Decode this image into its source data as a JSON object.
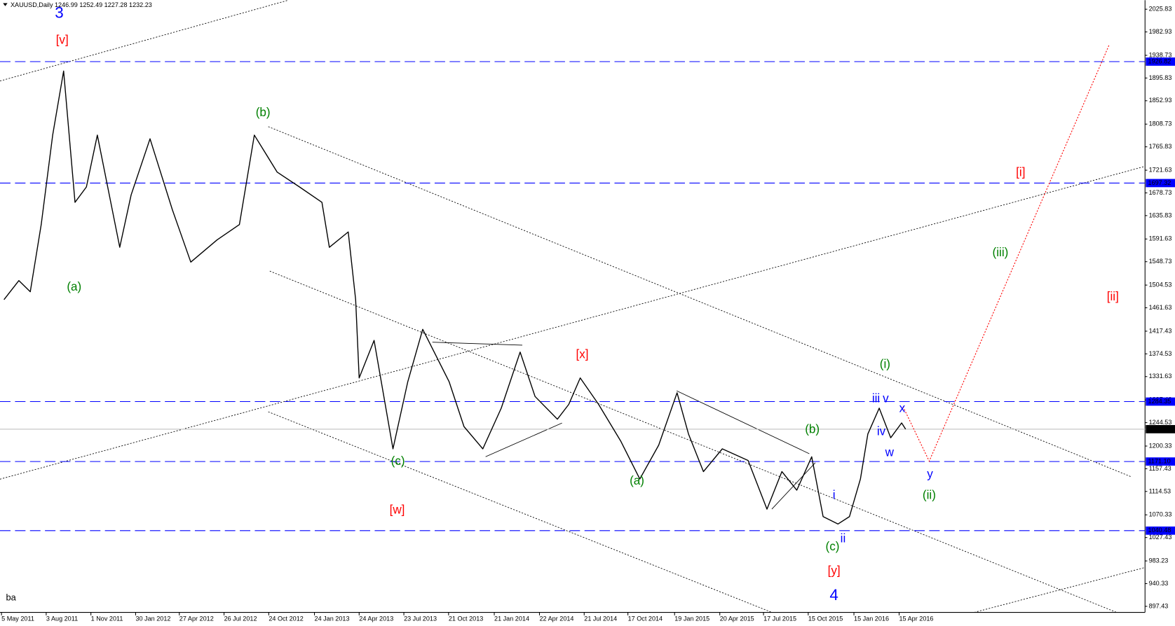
{
  "chart_data": {
    "type": "line",
    "title": "XAUUSD,Daily  1246.99 1252.49 1227.28 1232.23",
    "footnote": "ba",
    "color": "#000000",
    "x": [
      "2011-05-10",
      "2011-06-09",
      "2011-07-02",
      "2011-07-24",
      "2011-08-16",
      "2011-09-07",
      "2011-09-30",
      "2011-10-23",
      "2011-11-14",
      "2011-12-29",
      "2012-01-21",
      "2012-02-28",
      "2012-04-13",
      "2012-05-20",
      "2012-07-12",
      "2012-08-26",
      "2012-09-25",
      "2012-11-10",
      "2012-12-25",
      "2013-02-08",
      "2013-02-23",
      "2013-04-02",
      "2013-04-17",
      "2013-04-24",
      "2013-05-24",
      "2013-07-01",
      "2013-07-31",
      "2013-08-30",
      "2013-10-22",
      "2013-11-21",
      "2013-12-29",
      "2014-02-04",
      "2014-03-14",
      "2014-04-13",
      "2014-05-28",
      "2014-06-20",
      "2014-07-13",
      "2014-08-19",
      "2014-10-03",
      "2014-11-10",
      "2014-12-18",
      "2015-01-24",
      "2015-02-16",
      "2015-03-18",
      "2015-04-25",
      "2015-06-16",
      "2015-07-24",
      "2015-08-23",
      "2015-09-22",
      "2015-10-22",
      "2015-11-14",
      "2015-12-14",
      "2016-01-06",
      "2016-01-28",
      "2016-02-12",
      "2016-03-06",
      "2016-03-29",
      "2016-04-20",
      "2016-04-28"
    ],
    "values": [
      1477,
      1513,
      1492,
      1619,
      1788,
      1909,
      1661,
      1690,
      1788,
      1576,
      1675,
      1781,
      1647,
      1548,
      1590,
      1619,
      1788,
      1718,
      1690,
      1661,
      1576,
      1605,
      1477,
      1329,
      1400,
      1195,
      1322,
      1421,
      1322,
      1237,
      1195,
      1272,
      1378,
      1294,
      1251,
      1279,
      1329,
      1279,
      1209,
      1138,
      1202,
      1301,
      1223,
      1152,
      1195,
      1173,
      1081,
      1152,
      1117,
      1180,
      1067,
      1053,
      1067,
      1138,
      1223,
      1272,
      1216,
      1244,
      1232.23
    ],
    "xlim": [
      "2011-05-02",
      "2017-08-23"
    ],
    "xticks": [
      {
        "value": "2011-05-05",
        "label": "5 May 2011"
      },
      {
        "value": "2011-08-03",
        "label": "3 Aug 2011"
      },
      {
        "value": "2011-11-01",
        "label": "1 Nov 2011"
      },
      {
        "value": "2012-01-30",
        "label": "30 Jan 2012"
      },
      {
        "value": "2012-04-27",
        "label": "27 Apr 2012"
      },
      {
        "value": "2012-07-26",
        "label": "26 Jul 2012"
      },
      {
        "value": "2012-10-24",
        "label": "24 Oct 2012"
      },
      {
        "value": "2013-01-24",
        "label": "24 Jan 2013"
      },
      {
        "value": "2013-04-24",
        "label": "24 Apr 2013"
      },
      {
        "value": "2013-07-23",
        "label": "23 Jul 2013"
      },
      {
        "value": "2013-10-21",
        "label": "21 Oct 2013"
      },
      {
        "value": "2014-01-21",
        "label": "21 Jan 2014"
      },
      {
        "value": "2014-04-22",
        "label": "22 Apr 2014"
      },
      {
        "value": "2014-07-21",
        "label": "21 Jul 2014"
      },
      {
        "value": "2014-10-17",
        "label": "17 Oct 2014"
      },
      {
        "value": "2015-01-19",
        "label": "19 Jan 2015"
      },
      {
        "value": "2015-04-20",
        "label": "20 Apr 2015"
      },
      {
        "value": "2015-07-17",
        "label": "17 Jul 2015"
      },
      {
        "value": "2015-10-15",
        "label": "15 Oct 2015"
      },
      {
        "value": "2016-01-15",
        "label": "15 Jan 2016"
      },
      {
        "value": "2016-04-15",
        "label": "15 Apr 2016"
      }
    ],
    "ylim": [
      886,
      2043
    ],
    "yticks": [
      2025.83,
      1982.93,
      1938.73,
      1895.83,
      1852.93,
      1808.73,
      1765.83,
      1721.63,
      1678.73,
      1635.83,
      1591.63,
      1548.73,
      1504.53,
      1461.63,
      1417.43,
      1374.53,
      1331.63,
      1287.43,
      1244.53,
      1200.33,
      1157.43,
      1114.53,
      1070.33,
      1027.43,
      983.23,
      940.33,
      897.43
    ],
    "grid": false,
    "levels": [
      1926.82,
      1697.32,
      1284.35,
      {
        "value": 1171.1,
        "label": "1171.10"
      },
      1040.48
    ],
    "level_color": "#0000ff",
    "last_price": 1232.23,
    "last_price_color": "#c0c0c0",
    "annotations": [
      {
        "text": "3",
        "color": "#0000ff"
      },
      {
        "text": "[v]",
        "color": "#ff0000"
      },
      {
        "text": "(a)",
        "color": "#008000"
      },
      {
        "text": "(b)",
        "color": "#008000"
      },
      {
        "text": "(c)",
        "color": "#008000"
      },
      {
        "text": "[w]",
        "color": "#ff0000"
      },
      {
        "text": "[x]",
        "color": "#ff0000"
      },
      {
        "text": "(a)",
        "color": "#008000"
      },
      {
        "text": "(i)",
        "color": "#008000"
      },
      {
        "text": "(b)",
        "color": "#008000"
      },
      {
        "text": "iii",
        "color": "#0000ff"
      },
      {
        "text": "v",
        "color": "#0000ff"
      },
      {
        "text": "iv",
        "color": "#0000ff"
      },
      {
        "text": "w",
        "color": "#0000ff"
      },
      {
        "text": "x",
        "color": "#0000ff"
      },
      {
        "text": "y",
        "color": "#0000ff"
      },
      {
        "text": "(ii)",
        "color": "#008000"
      },
      {
        "text": "i",
        "color": "#0000ff"
      },
      {
        "text": "ii",
        "color": "#0000ff"
      },
      {
        "text": "(c)",
        "color": "#008000"
      },
      {
        "text": "[y]",
        "color": "#ff0000"
      },
      {
        "text": "4",
        "color": "#0000ff"
      },
      {
        "text": "(iii)",
        "color": "#008000"
      },
      {
        "text": "[i]",
        "color": "#ff0000"
      },
      {
        "text": "[ii]",
        "color": "#ff0000"
      }
    ],
    "projection_color": "#ff0000"
  }
}
